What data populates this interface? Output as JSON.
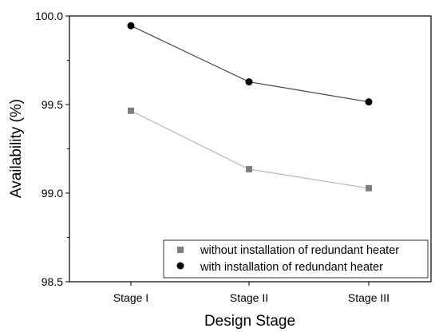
{
  "chart_data": {
    "type": "line",
    "title": "",
    "xlabel": "Design Stage",
    "ylabel": "Availability (%)",
    "categories": [
      "Stage I",
      "Stage II",
      "Stage III"
    ],
    "ylim": [
      98.5,
      100.0
    ],
    "yticks": [
      98.5,
      99.0,
      99.5,
      100.0
    ],
    "ytick_labels": [
      "98.5",
      "99.0",
      "99.5",
      "100.0"
    ],
    "grid": false,
    "legend_position": "bottom-right",
    "series": [
      {
        "name": "without installation of redundant heater",
        "values": [
          99.465,
          99.135,
          99.028
        ],
        "marker": "square",
        "marker_color": "#808080",
        "line_color": "#b8b8b8"
      },
      {
        "name": "with installation of redundant heater",
        "values": [
          99.945,
          99.628,
          99.515
        ],
        "marker": "circle",
        "marker_color": "#000000",
        "line_color": "#444444"
      }
    ]
  }
}
